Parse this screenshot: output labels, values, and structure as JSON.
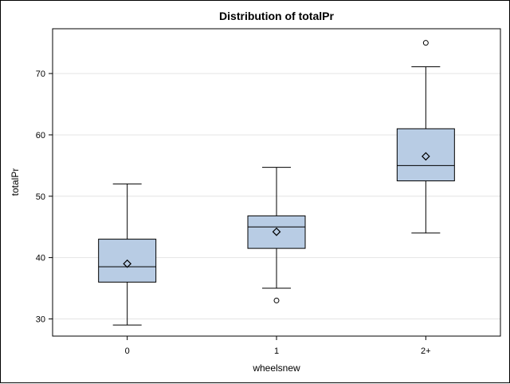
{
  "chart_data": {
    "type": "box",
    "title": "Distribution of totalPr",
    "xlabel": "wheelsnew",
    "ylabel": "totalPr",
    "ylim": [
      27.2,
      77.3
    ],
    "yticks": [
      30,
      40,
      50,
      60,
      70
    ],
    "grid": true,
    "categories": [
      "0",
      "1",
      "2+"
    ],
    "boxes": [
      {
        "category": "0",
        "whisker_low": 29,
        "q1": 36,
        "median": 38.5,
        "q3": 43,
        "whisker_high": 52,
        "mean": 39,
        "outliers": []
      },
      {
        "category": "1",
        "whisker_low": 35,
        "q1": 41.5,
        "median": 45,
        "q3": 46.8,
        "whisker_high": 54.7,
        "mean": 44.2,
        "outliers": [
          33
        ]
      },
      {
        "category": "2+",
        "whisker_low": 44,
        "q1": 52.5,
        "median": 55,
        "q3": 61,
        "whisker_high": 71.1,
        "mean": 56.5,
        "outliers": [
          75
        ]
      }
    ],
    "colors": {
      "box_fill": "#b8cce4",
      "stroke": "#000000",
      "grid": "#e4e4e4"
    }
  }
}
